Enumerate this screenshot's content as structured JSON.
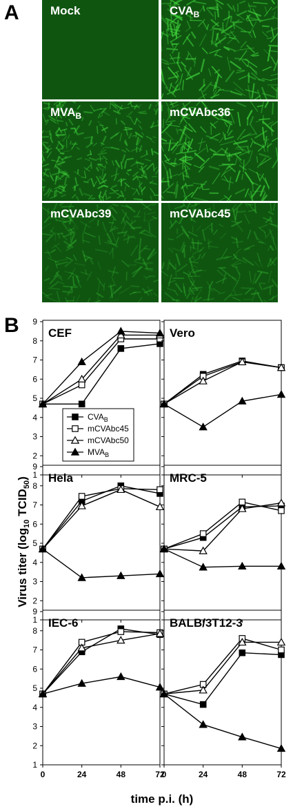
{
  "panel_a": {
    "letter": "A",
    "images": [
      {
        "label": "Mock",
        "sub": "",
        "style": "flat"
      },
      {
        "label": "CVA",
        "sub": "B",
        "style": "bright"
      },
      {
        "label": "MVA",
        "sub": "B",
        "style": "dense"
      },
      {
        "label": "mCVAbc36",
        "sub": "",
        "style": "bright"
      },
      {
        "label": "mCVAbc39",
        "sub": "",
        "style": "dim"
      },
      {
        "label": "mCVAbc45",
        "sub": "",
        "style": "dim"
      }
    ],
    "colors": {
      "background": "#0f5510",
      "fluorescence": "#3fd23a"
    }
  },
  "panel_b": {
    "letter": "B",
    "ylabel": "Virus titer (log",
    "ylabel_sub1": "10",
    "ylabel_mid": " TCID",
    "ylabel_sub2": "50",
    "ylabel_end": ")",
    "xlabel": "time p.i. (h)",
    "legend": [
      {
        "name": "CVA",
        "sub": "B",
        "marker": "filled-square"
      },
      {
        "name": "mCVAbc45",
        "sub": "",
        "marker": "open-square"
      },
      {
        "name": "mCVAbc50",
        "sub": "",
        "marker": "open-triangle"
      },
      {
        "name": "MVA",
        "sub": "B",
        "marker": "filled-triangle"
      }
    ]
  },
  "chart_data": [
    {
      "type": "line",
      "title": "CEF",
      "x": [
        0,
        24,
        48,
        72
      ],
      "xticks": [
        "0",
        "24",
        "48",
        "72"
      ],
      "ylim": [
        1,
        9
      ],
      "yticks": [
        1,
        2,
        3,
        4,
        5,
        6,
        7,
        8,
        9
      ],
      "grid": false,
      "series": [
        {
          "name": "CVAB",
          "values": [
            4.7,
            4.7,
            7.6,
            7.85
          ]
        },
        {
          "name": "mCVAbc45",
          "values": [
            4.7,
            5.7,
            8.1,
            8.1
          ]
        },
        {
          "name": "mCVAbc50",
          "values": [
            4.7,
            6.0,
            8.3,
            8.3
          ]
        },
        {
          "name": "MVAB",
          "values": [
            4.7,
            6.9,
            8.5,
            8.4
          ]
        }
      ]
    },
    {
      "type": "line",
      "title": "Vero",
      "x": [
        0,
        24,
        48,
        72
      ],
      "xticks": [
        "0",
        "24",
        "48",
        "72"
      ],
      "ylim": [
        1,
        9
      ],
      "yticks": [
        1,
        2,
        3,
        4,
        5,
        6,
        7,
        8,
        9
      ],
      "grid": false,
      "series": [
        {
          "name": "CVAB",
          "values": [
            4.7,
            6.25,
            6.95,
            6.6
          ]
        },
        {
          "name": "mCVAbc45",
          "values": [
            4.7,
            6.15,
            6.9,
            6.6
          ]
        },
        {
          "name": "mCVAbc50",
          "values": [
            4.7,
            5.9,
            6.9,
            6.6
          ]
        },
        {
          "name": "MVAB",
          "values": [
            4.7,
            3.5,
            4.85,
            5.2
          ]
        }
      ]
    },
    {
      "type": "line",
      "title": "Hela",
      "x": [
        0,
        24,
        48,
        72
      ],
      "xticks": [
        "0",
        "24",
        "48",
        "72"
      ],
      "ylim": [
        1,
        9
      ],
      "yticks": [
        1,
        2,
        3,
        4,
        5,
        6,
        7,
        8,
        9
      ],
      "grid": false,
      "series": [
        {
          "name": "CVAB",
          "values": [
            4.7,
            7.2,
            8.0,
            7.6
          ]
        },
        {
          "name": "mCVAbc45",
          "values": [
            4.7,
            7.45,
            7.85,
            7.8
          ]
        },
        {
          "name": "mCVAbc50",
          "values": [
            4.7,
            6.95,
            7.8,
            6.9
          ]
        },
        {
          "name": "MVAB",
          "values": [
            4.7,
            3.2,
            3.3,
            3.4
          ]
        }
      ]
    },
    {
      "type": "line",
      "title": "MRC-5",
      "x": [
        0,
        24,
        48,
        72
      ],
      "xticks": [
        "0",
        "24",
        "48",
        "72"
      ],
      "ylim": [
        1,
        9
      ],
      "yticks": [
        1,
        2,
        3,
        4,
        5,
        6,
        7,
        8,
        9
      ],
      "grid": false,
      "series": [
        {
          "name": "CVAB",
          "values": [
            4.7,
            5.3,
            6.9,
            6.95
          ]
        },
        {
          "name": "mCVAbc45",
          "values": [
            4.7,
            5.5,
            7.15,
            6.7
          ]
        },
        {
          "name": "mCVAbc50",
          "values": [
            4.7,
            4.6,
            6.8,
            7.1
          ]
        },
        {
          "name": "MVAB",
          "values": [
            4.7,
            3.75,
            3.8,
            3.8
          ]
        }
      ]
    },
    {
      "type": "line",
      "title": "IEC-6",
      "x": [
        0,
        24,
        48,
        72
      ],
      "xticks": [
        "0",
        "24",
        "48",
        "72"
      ],
      "ylim": [
        1,
        9
      ],
      "yticks": [
        1,
        2,
        3,
        4,
        5,
        6,
        7,
        8,
        9
      ],
      "grid": false,
      "series": [
        {
          "name": "CVAB",
          "values": [
            4.7,
            6.9,
            8.1,
            7.8
          ]
        },
        {
          "name": "mCVAbc45",
          "values": [
            4.7,
            7.4,
            7.95,
            7.9
          ]
        },
        {
          "name": "mCVAbc50",
          "values": [
            4.7,
            7.1,
            7.5,
            7.85
          ]
        },
        {
          "name": "MVAB",
          "values": [
            4.7,
            5.25,
            5.6,
            5.05
          ]
        }
      ]
    },
    {
      "type": "line",
      "title": "BALB/3T12-3",
      "x": [
        0,
        24,
        48,
        72
      ],
      "xticks": [
        "0",
        "24",
        "48",
        "72"
      ],
      "ylim": [
        1,
        9
      ],
      "yticks": [
        1,
        2,
        3,
        4,
        5,
        6,
        7,
        8,
        9
      ],
      "grid": false,
      "series": [
        {
          "name": "CVAB",
          "values": [
            4.7,
            4.15,
            6.85,
            6.75
          ]
        },
        {
          "name": "mCVAbc45",
          "values": [
            4.7,
            5.2,
            7.6,
            7.0
          ]
        },
        {
          "name": "mCVAbc50",
          "values": [
            4.7,
            4.9,
            7.4,
            7.4
          ]
        },
        {
          "name": "MVAB",
          "values": [
            4.7,
            3.1,
            2.45,
            1.85
          ]
        }
      ]
    }
  ]
}
